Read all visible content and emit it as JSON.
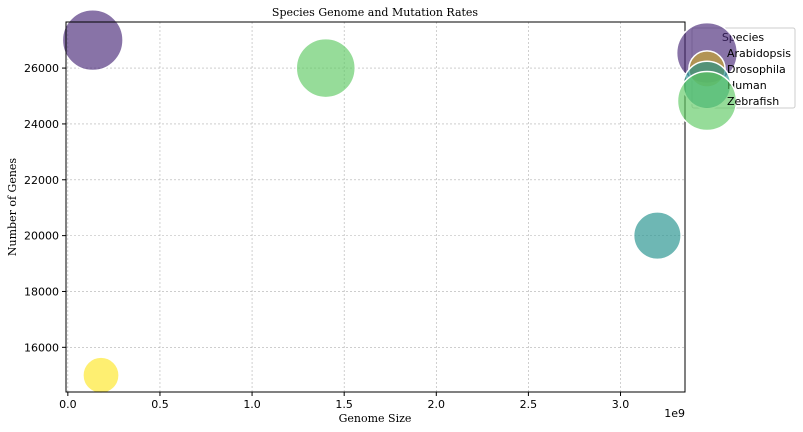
{
  "chart_data": {
    "type": "scatter",
    "title": "Species Genome and Mutation Rates",
    "xlabel": "Genome Size",
    "ylabel": "Number of Genes",
    "x_multiplier_label": "1e9",
    "xlim": [
      -10000000.0,
      3350000000.0
    ],
    "ylim": [
      14400,
      27650
    ],
    "xticks": [
      0,
      500000000.0,
      1000000000.0,
      1500000000.0,
      2000000000.0,
      2500000000.0,
      3000000000.0
    ],
    "xtick_labels": [
      "0.0",
      "0.5",
      "1.0",
      "1.5",
      "2.0",
      "2.5",
      "3.0"
    ],
    "yticks": [
      16000,
      18000,
      20000,
      22000,
      24000,
      26000
    ],
    "ytick_labels": [
      "16000",
      "18000",
      "20000",
      "22000",
      "24000",
      "26000"
    ],
    "grid": true,
    "legend_title": "Species",
    "legend_placement": "top-right outside",
    "series": [
      {
        "name": "Arabidopsis",
        "x": 135000000.0,
        "y": 27000,
        "size": 0.9,
        "color": "#482878"
      },
      {
        "name": "Drosophila",
        "x": 180000000.0,
        "y": 15000,
        "size": 0.32,
        "color": "#fde725"
      },
      {
        "name": "Human",
        "x": 3200000000.0,
        "y": 20000,
        "size": 0.55,
        "color": "#21918c"
      },
      {
        "name": "Zebrafish",
        "x": 1400000000.0,
        "y": 26000,
        "size": 0.85,
        "color": "#5ec962"
      }
    ],
    "legend_colors": [
      "#482878",
      "#c9a62a",
      "#21918c",
      "#5ec962"
    ]
  }
}
